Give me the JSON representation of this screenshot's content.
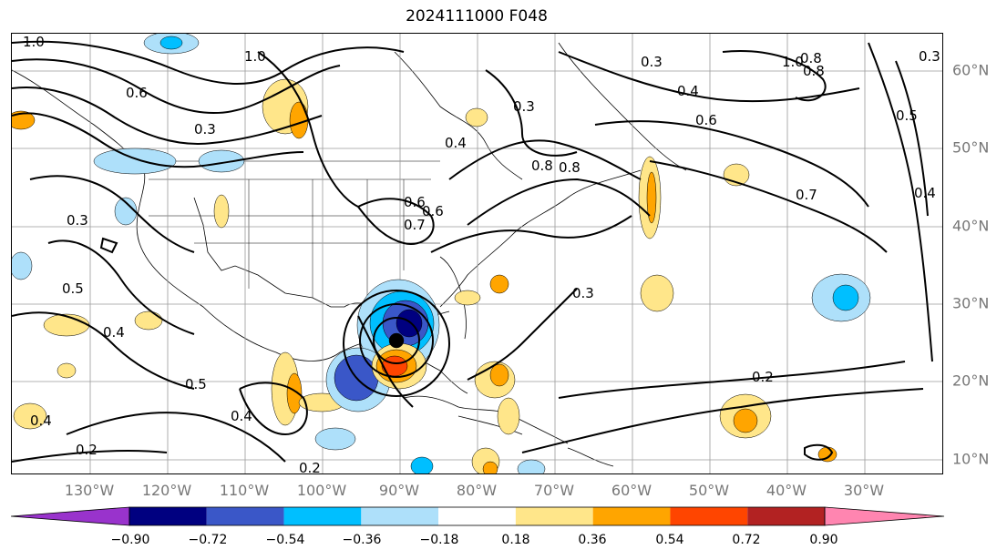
{
  "title": "2024111000 F048",
  "lat_labels": [
    "60°N",
    "50°N",
    "40°N",
    "30°N",
    "20°N",
    "10°N"
  ],
  "lon_labels": [
    "130°W",
    "120°W",
    "110°W",
    "100°W",
    "90°W",
    "80°W",
    "70°W",
    "60°W",
    "50°W",
    "40°W",
    "30°W"
  ],
  "colorbar": {
    "ticks": [
      "−0.90",
      "−0.72",
      "−0.54",
      "−0.36",
      "−0.18",
      "0.18",
      "0.36",
      "0.54",
      "0.72",
      "0.90"
    ],
    "colors": [
      "#9933cc",
      "#000080",
      "#3a57c8",
      "#00bfff",
      "#aee0fa",
      "#ffffff",
      "#ffe68a",
      "#ffa500",
      "#ff4500",
      "#b22222",
      "#ff85b0"
    ]
  },
  "contour_labels": [
    "1.0",
    "1.0",
    "0.8",
    "1.0",
    "0.8",
    "0.6",
    "0.6",
    "0.4",
    "0.3",
    "0.3",
    "0.4",
    "0.6",
    "0.8",
    "0.7",
    "0.3",
    "0.5",
    "0.4",
    "0.5",
    "0.4",
    "0.2",
    "0.2",
    "0.3",
    "0.4",
    "0.8",
    "0.7",
    "0.3",
    "0.4",
    "0.2",
    "0.6",
    "0.3",
    "0.5"
  ],
  "colors": {
    "contour": "#000000",
    "grid": "#9a9a9a",
    "axis_text": "#777777"
  }
}
